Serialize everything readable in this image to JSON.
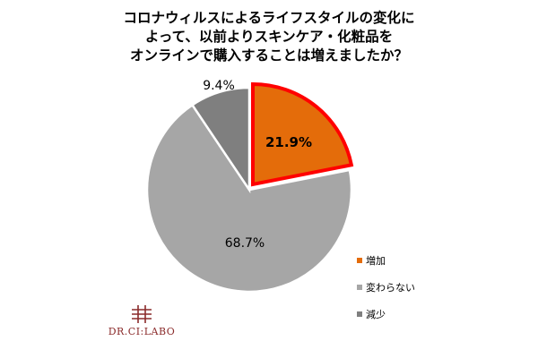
{
  "title_lines": [
    "コロナウィルスによるライフスタイルの変化に",
    "よって、以前よりスキンケア・化粧品を",
    "オンラインで購入することは増えましたか？"
  ],
  "chart_data": {
    "type": "pie",
    "title": "コロナウィルスによるライフスタイルの変化によって、以前よりスキンケア・化粧品をオンラインで購入することは増えましたか？",
    "slices": [
      {
        "label": "増加",
        "value": 21.9,
        "display": "21.9%",
        "color": "#E46C0A",
        "highlight": true
      },
      {
        "label": "変わらない",
        "value": 68.7,
        "display": "68.7%",
        "color": "#A6A6A6",
        "highlight": false
      },
      {
        "label": "減少",
        "value": 9.4,
        "display": "9.4%",
        "color": "#7F7F7F",
        "highlight": false
      }
    ],
    "start": "12 o'clock",
    "direction": "clockwise",
    "legend_position": "right-bottom",
    "highlight_color": "#FF0000"
  },
  "logo": {
    "text": "DR.CI:LABO",
    "color": "#8a2a2a"
  }
}
